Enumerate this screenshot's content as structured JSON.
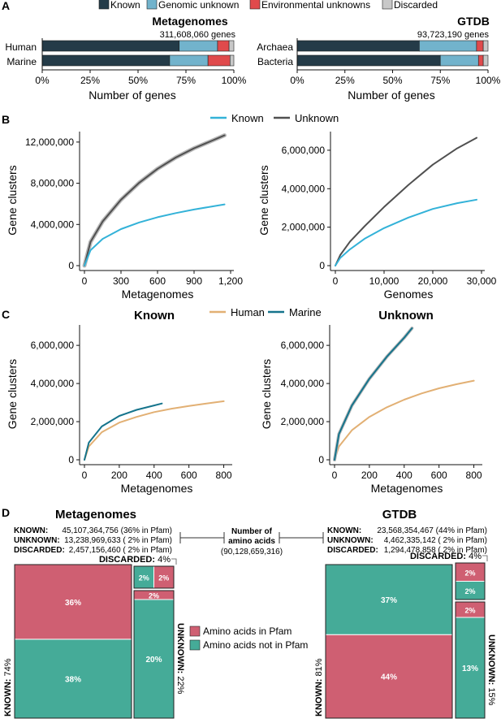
{
  "panel_labels": [
    "A",
    "B",
    "C",
    "D"
  ],
  "colors": {
    "known": "#243b48",
    "genomic_unknown": "#72b3cc",
    "environmental_unknown": "#e04a4c",
    "discarded": "#c8c8c8",
    "line_known": "#33b2d8",
    "line_unknown": "#505050",
    "human": "#e2b074",
    "marine": "#15748c",
    "pfam": "#cf5f72",
    "not_pfam": "#45ab98"
  },
  "legend_A": [
    "Known",
    "Genomic unknown",
    "Environmental unknowns",
    "Discarded"
  ],
  "legend_B": [
    "Known",
    "Unknown"
  ],
  "legend_C": [
    "Human",
    "Marine"
  ],
  "legend_D": [
    "Amino acids in Pfam",
    "Amino acids not in Pfam"
  ],
  "chart_data": [
    {
      "id": "A-metagenomes",
      "type": "bar",
      "orientation": "horizontal",
      "stacked": true,
      "title": "Metagenomes",
      "subtitle": "311,608,060 genes",
      "categories": [
        "Human",
        "Marine"
      ],
      "series": [
        {
          "name": "Known",
          "values": [
            71.5,
            66.5
          ]
        },
        {
          "name": "Genomic unknown",
          "values": [
            20.0,
            20.0
          ]
        },
        {
          "name": "Environmental unknowns",
          "values": [
            6.0,
            11.5
          ]
        },
        {
          "name": "Discarded",
          "values": [
            2.5,
            2.0
          ]
        }
      ],
      "xlabel": "Number of genes",
      "xticks": [
        "0%",
        "25%",
        "50%",
        "75%",
        "100%"
      ],
      "xlim": [
        0,
        100
      ]
    },
    {
      "id": "A-gtdb",
      "type": "bar",
      "orientation": "horizontal",
      "stacked": true,
      "title": "GTDB",
      "subtitle": "93,723,190 genes",
      "categories": [
        "Archaea",
        "Bacteria"
      ],
      "series": [
        {
          "name": "Known",
          "values": [
            64.0,
            75.0
          ]
        },
        {
          "name": "Genomic unknown",
          "values": [
            30.0,
            20.0
          ]
        },
        {
          "name": "Environmental unknowns",
          "values": [
            3.5,
            2.5
          ]
        },
        {
          "name": "Discarded",
          "values": [
            2.5,
            2.5
          ]
        }
      ],
      "xlabel": "Number of genes",
      "xticks": [
        "0%",
        "25%",
        "50%",
        "75%",
        "100%"
      ],
      "xlim": [
        0,
        100
      ]
    },
    {
      "id": "B-metagenomes",
      "type": "line",
      "xlabel": "Metagenomes",
      "ylabel": "Gene clusters",
      "xlim": [
        0,
        1200
      ],
      "ylim": [
        0,
        12700000
      ],
      "xticks": [
        0,
        300,
        600,
        900,
        1200
      ],
      "xtick_labels": [
        "0",
        "300",
        "600",
        "900",
        "1,200"
      ],
      "yticks": [
        0,
        4000000,
        8000000,
        12000000
      ],
      "ytick_labels": [
        "0",
        "4,000,000",
        "8,000,000",
        "12,000,000"
      ],
      "series": [
        {
          "name": "Unknown",
          "x": [
            0,
            50,
            150,
            300,
            450,
            600,
            750,
            900,
            1050,
            1150
          ],
          "y": [
            0,
            2300000,
            4300000,
            6400000,
            8050000,
            9400000,
            10500000,
            11400000,
            12150000,
            12650000
          ]
        },
        {
          "name": "Known",
          "x": [
            0,
            50,
            150,
            300,
            450,
            600,
            750,
            900,
            1050,
            1150
          ],
          "y": [
            0,
            1500000,
            2600000,
            3550000,
            4200000,
            4700000,
            5100000,
            5450000,
            5750000,
            5950000
          ]
        }
      ]
    },
    {
      "id": "B-gtdb",
      "type": "line",
      "xlabel": "Genomes",
      "ylabel": "Gene clusters",
      "xlim": [
        0,
        30000
      ],
      "ylim": [
        0,
        6800000
      ],
      "xticks": [
        0,
        10000,
        20000,
        30000
      ],
      "xtick_labels": [
        "0",
        "10,000",
        "20,000",
        "30,000"
      ],
      "yticks": [
        0,
        2000000,
        4000000,
        6000000
      ],
      "ytick_labels": [
        "0",
        "2,000,000",
        "4,000,000",
        "6,000,000"
      ],
      "series": [
        {
          "name": "Unknown",
          "x": [
            0,
            1000,
            3000,
            6000,
            10000,
            15000,
            20000,
            25000,
            29000
          ],
          "y": [
            0,
            550000,
            1250000,
            2050000,
            3050000,
            4200000,
            5250000,
            6100000,
            6650000
          ]
        },
        {
          "name": "Known",
          "x": [
            0,
            1000,
            3000,
            6000,
            10000,
            15000,
            20000,
            25000,
            29000
          ],
          "y": [
            0,
            400000,
            850000,
            1400000,
            1950000,
            2500000,
            2950000,
            3250000,
            3430000
          ]
        }
      ]
    },
    {
      "id": "C-known",
      "type": "line",
      "title": "Known",
      "xlabel": "Metagenomes",
      "ylabel": "Gene clusters",
      "xlim": [
        0,
        830
      ],
      "ylim": [
        0,
        6900000
      ],
      "xticks": [
        0,
        200,
        400,
        600,
        800
      ],
      "xtick_labels": [
        "0",
        "200",
        "400",
        "600",
        "800"
      ],
      "yticks": [
        0,
        2000000,
        4000000,
        6000000
      ],
      "ytick_labels": [
        "0",
        "2,000,000",
        "4,000,000",
        "6,000,000"
      ],
      "series": [
        {
          "name": "Human",
          "x": [
            0,
            25,
            100,
            200,
            300,
            400,
            500,
            600,
            700,
            800
          ],
          "y": [
            0,
            700000,
            1450000,
            1950000,
            2250000,
            2500000,
            2680000,
            2820000,
            2950000,
            3070000
          ]
        },
        {
          "name": "Marine",
          "x": [
            0,
            25,
            100,
            200,
            300,
            400,
            445
          ],
          "y": [
            0,
            900000,
            1750000,
            2300000,
            2620000,
            2850000,
            2950000
          ]
        }
      ]
    },
    {
      "id": "C-unknown",
      "type": "line",
      "title": "Unknown",
      "xlabel": "Metagenomes",
      "ylabel": "Gene clusters",
      "xlim": [
        0,
        830
      ],
      "ylim": [
        0,
        6900000
      ],
      "xticks": [
        0,
        200,
        400,
        600,
        800
      ],
      "xtick_labels": [
        "0",
        "200",
        "400",
        "600",
        "800"
      ],
      "yticks": [
        0,
        2000000,
        4000000,
        6000000
      ],
      "ytick_labels": [
        "0",
        "2,000,000",
        "4,000,000",
        "6,000,000"
      ],
      "series": [
        {
          "name": "Human",
          "x": [
            0,
            25,
            100,
            200,
            300,
            400,
            500,
            600,
            700,
            800
          ],
          "y": [
            0,
            700000,
            1550000,
            2250000,
            2750000,
            3150000,
            3480000,
            3750000,
            3960000,
            4150000
          ]
        },
        {
          "name": "Marine",
          "x": [
            0,
            25,
            100,
            200,
            300,
            400,
            445
          ],
          "y": [
            0,
            1350000,
            2850000,
            4250000,
            5400000,
            6400000,
            6900000
          ]
        }
      ]
    },
    {
      "id": "D-metagenomes",
      "type": "mosaic",
      "title": "Metagenomes",
      "summary": [
        {
          "label": "KNOWN:",
          "value": "45,107,364,756 (36% in Pfam)"
        },
        {
          "label": "UNKNOWN:",
          "value": "13,238,969,633 ( 2% in Pfam)"
        },
        {
          "label": "DISCARDED:",
          "value": "2,457,156,460 ( 2% in Pfam)"
        }
      ],
      "groups": [
        {
          "name": "KNOWN",
          "share_label": "74%",
          "share": 74,
          "pfam": 36,
          "not_pfam": 38,
          "pfam_label": "36%",
          "not_pfam_label": "38%"
        },
        {
          "name": "DISCARDED",
          "share_label": "4%",
          "share": 4,
          "pfam": 2,
          "not_pfam": 2,
          "pfam_label": "2%",
          "not_pfam_label": "2%"
        },
        {
          "name": "UNKNOWN",
          "share_label": "22%",
          "share": 22,
          "pfam": 2,
          "not_pfam": 20,
          "pfam_label": "2%",
          "not_pfam_label": "20%"
        }
      ]
    },
    {
      "id": "D-gtdb",
      "type": "mosaic",
      "title": "GTDB",
      "summary": [
        {
          "label": "KNOWN:",
          "value": "23,568,354,467 (44% in Pfam)"
        },
        {
          "label": "UNKNOWN:",
          "value": "4,462,335,142 ( 2% in Pfam)"
        },
        {
          "label": "DISCARDED:",
          "value": "1,294,478,858 ( 2% in Pfam)"
        }
      ],
      "groups": [
        {
          "name": "KNOWN",
          "share_label": "81%",
          "share": 81,
          "pfam": 44,
          "not_pfam": 37,
          "pfam_label": "44%",
          "not_pfam_label": "37%"
        },
        {
          "name": "DISCARDED",
          "share_label": "4%",
          "share": 4,
          "pfam": 2,
          "not_pfam": 2,
          "pfam_label": "2%",
          "not_pfam_label": "2%"
        },
        {
          "name": "UNKNOWN",
          "share_label": "15%",
          "share": 15,
          "pfam": 2,
          "not_pfam": 13,
          "pfam_label": "2%",
          "not_pfam_label": "13%"
        }
      ]
    }
  ],
  "center_note": {
    "title1": "Number of",
    "title2": "amino acids",
    "total": "(90,128,659,316)"
  }
}
